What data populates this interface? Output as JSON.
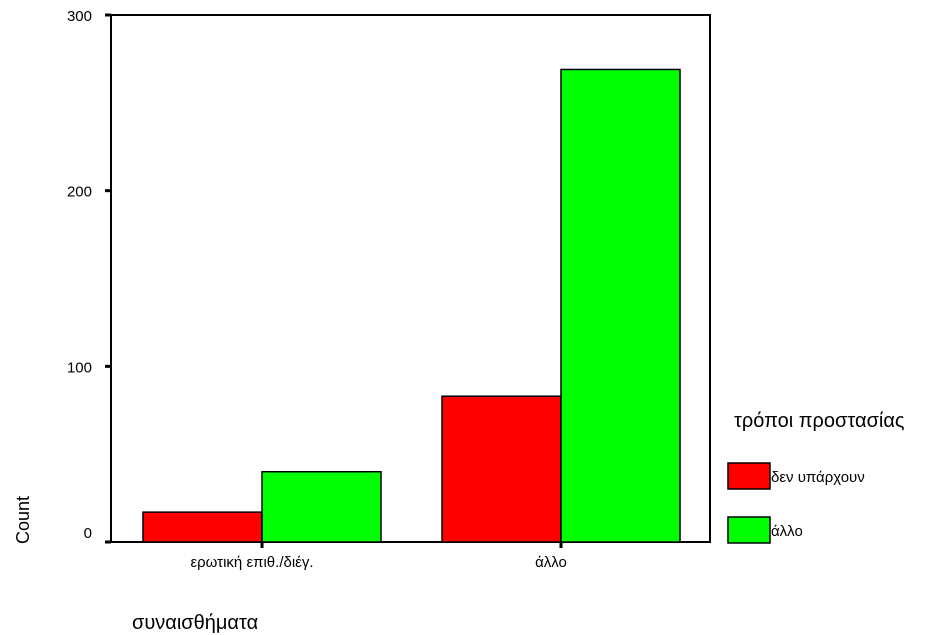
{
  "chart_data": {
    "type": "bar",
    "title": "",
    "xlabel": "συναισθήματα",
    "ylabel": "Count",
    "categories": [
      "ερωτική επιθ./διέγ.",
      "άλλο"
    ],
    "series": [
      {
        "name": "δεν υπάρχουν",
        "color": "#ff0000",
        "values": [
          17,
          83
        ]
      },
      {
        "name": "άλλο",
        "color": "#00ff00",
        "values": [
          40,
          269
        ]
      }
    ],
    "ylim": [
      0,
      300
    ],
    "yticks": [
      0,
      100,
      200,
      300
    ],
    "grid": false,
    "legend": {
      "title": "τρόποι προστασίας",
      "placement": "right"
    }
  }
}
